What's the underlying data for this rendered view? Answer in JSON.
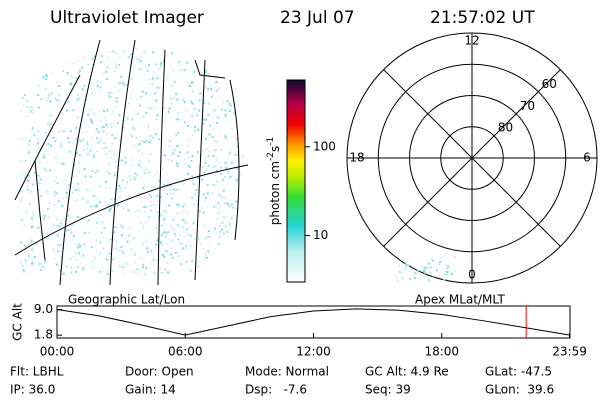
{
  "header": {
    "instrument": "Ultraviolet Imager",
    "date": "23 Jul 07",
    "time": "21:57:02 UT"
  },
  "colorbar": {
    "label_parts": [
      "photon cm",
      "-2",
      "s",
      "-1"
    ],
    "scale": "log",
    "lim": [
      3,
      565
    ],
    "ticks": [
      10,
      100
    ]
  },
  "polar": {
    "lat_lim": [
      90,
      50
    ],
    "lat_rings": [
      80,
      70,
      60
    ],
    "mlt_labels": [
      12,
      18,
      6,
      0
    ]
  },
  "altitude_plot": {
    "type": "line",
    "ylabel": "GC Alt",
    "left_label": "Geographic Lat/Lon",
    "right_label": "Apex MLat/MLT",
    "x": [
      0,
      2,
      4,
      6,
      8,
      10,
      12,
      14,
      16,
      18,
      20,
      22,
      24
    ],
    "values": [
      9.0,
      7.2,
      4.6,
      1.8,
      4.4,
      7.0,
      8.6,
      9.2,
      8.8,
      7.6,
      5.8,
      3.8,
      1.8
    ],
    "xlim": [
      0,
      24
    ],
    "xticks": [
      {
        "value": 0,
        "label": "00:00"
      },
      {
        "value": 6,
        "label": "06:00"
      },
      {
        "value": 12,
        "label": "12:00"
      },
      {
        "value": 18,
        "label": "18:00"
      },
      {
        "value": 23.98,
        "label": "23:59"
      }
    ],
    "ylim": [
      1,
      10
    ],
    "yticks": [
      {
        "value": 9,
        "label": "9.0"
      },
      {
        "value": 1.8,
        "label": "1.8"
      }
    ],
    "marker_x": 21.95,
    "marker_color": "#ff0000"
  },
  "status": {
    "rows": [
      [
        "Flt: LBHL",
        "Door: Open",
        "Mode: Normal",
        "GC Alt: 4.9 Re",
        "GLat: -47.5"
      ],
      [
        "IP: 36.0",
        "Gain: 14",
        "Dsp:   -7.6",
        "Seq: 39",
        "GLon:  39.6"
      ]
    ]
  }
}
